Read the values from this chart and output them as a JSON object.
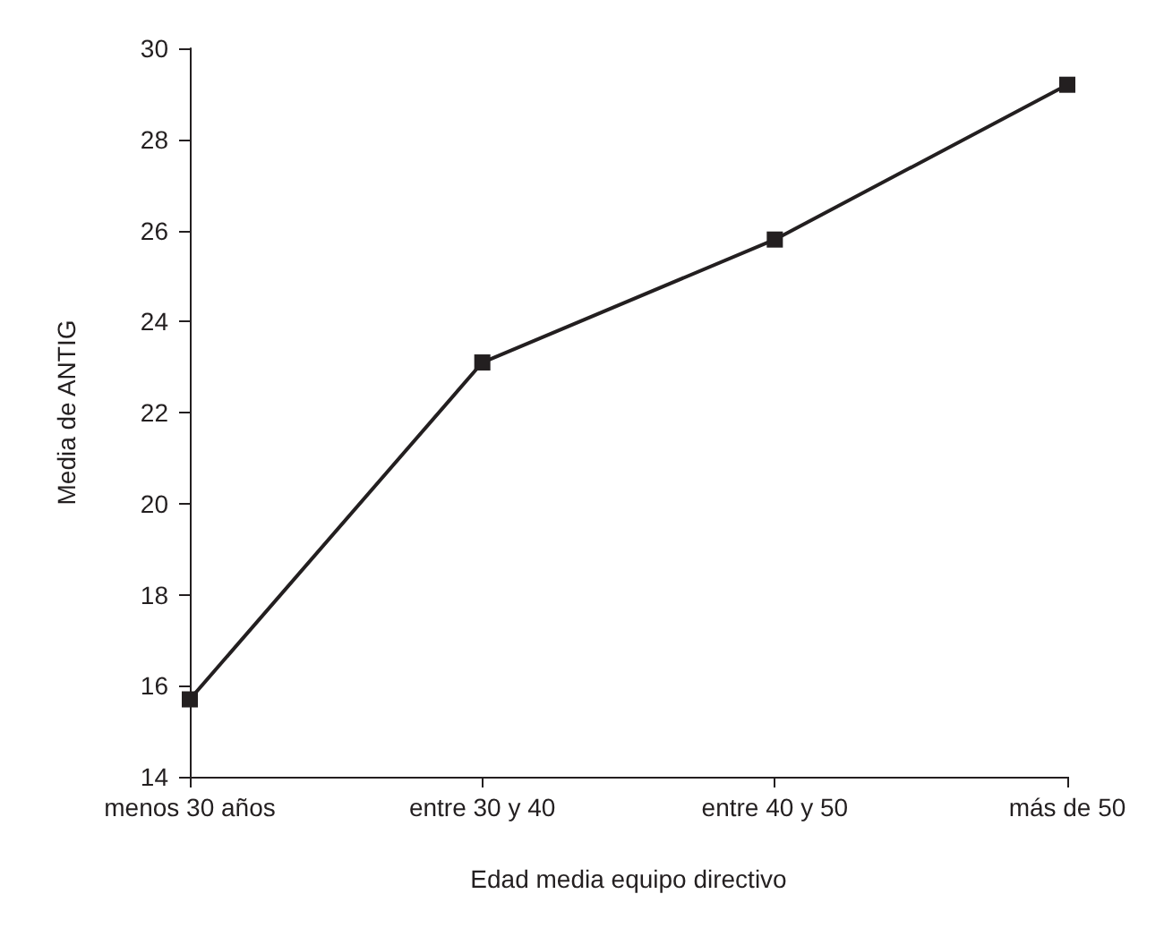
{
  "chart_data": {
    "type": "line",
    "xlabel": "Edad media equipo directivo",
    "ylabel": "Media de ANTIG",
    "categories": [
      "menos 30 años",
      "entre 30 y 40",
      "entre 40 y 50",
      "más de 50"
    ],
    "series": [
      {
        "color": "#231f20",
        "values": [
          15.7,
          23.1,
          25.8,
          29.2
        ]
      }
    ],
    "ylim": [
      14,
      30
    ],
    "yticks": [
      14,
      16,
      18,
      20,
      22,
      24,
      26,
      28,
      30
    ],
    "grid": false,
    "marker": "square",
    "line_style": "solid"
  }
}
